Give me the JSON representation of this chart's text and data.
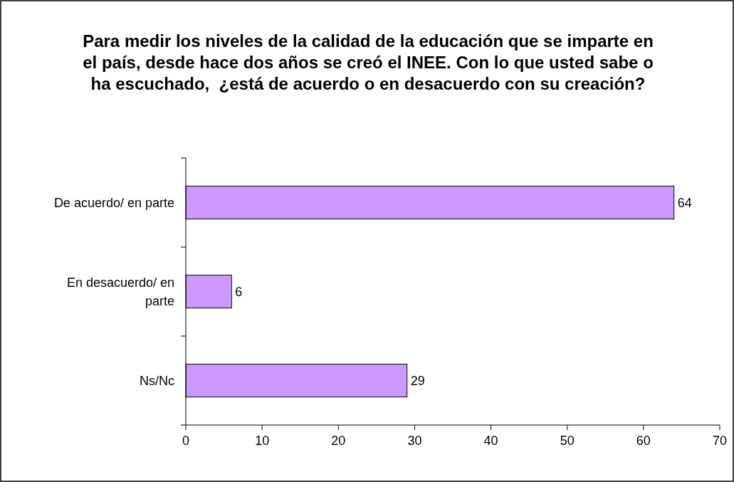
{
  "chart_data": {
    "type": "bar",
    "orientation": "horizontal",
    "title": "Para medir los niveles de la calidad de la educación que se imparte en el país, desde hace dos años se creó el INEE. Con lo que usted sabe o ha escuchado,  ¿está de acuerdo o en desacuerdo con su creación?",
    "categories": [
      "De acuerdo/ en parte",
      "En desacuerdo/ en parte",
      "Ns/Nc"
    ],
    "values": [
      64,
      6,
      29
    ],
    "color": "#cc99ff",
    "data_labels": true,
    "grid": false,
    "xlim": [
      0,
      70
    ],
    "xticks": [
      0,
      10,
      20,
      30,
      40,
      50,
      60,
      70
    ]
  }
}
